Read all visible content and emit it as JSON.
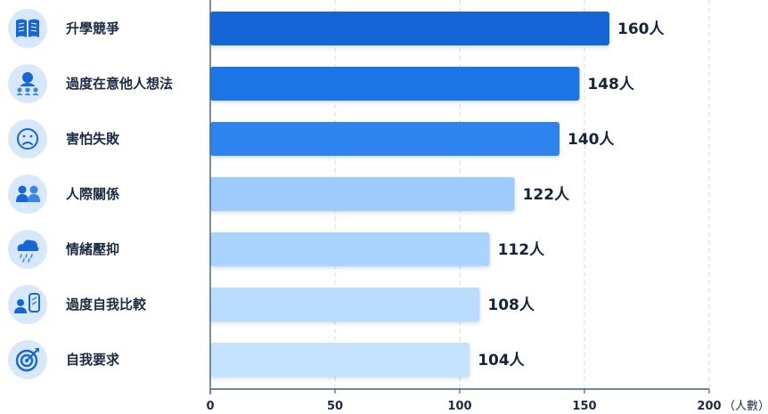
{
  "chart_data": {
    "type": "bar",
    "orientation": "horizontal",
    "categories": [
      "升學競爭",
      "過度在意他人想法",
      "害怕失敗",
      "人際關係",
      "情緒壓抑",
      "過度自我比較",
      "自我要求"
    ],
    "icons": [
      "book-icon",
      "worried-person-group-icon",
      "sad-face-icon",
      "two-people-icon",
      "rain-cloud-icon",
      "person-mirror-icon",
      "target-icon"
    ],
    "values": [
      160,
      148,
      140,
      122,
      112,
      108,
      104
    ],
    "value_labels": [
      "160人",
      "148人",
      "140人",
      "122人",
      "112人",
      "108人",
      "104人"
    ],
    "bar_colors": [
      "#1565d8",
      "#1f74e6",
      "#2f84ee",
      "#9ccbfc",
      "#aad4fd",
      "#b9dbfd",
      "#c4e1fd"
    ],
    "xlim": [
      0,
      200
    ],
    "x_ticks": [
      0,
      50,
      100,
      150,
      200
    ],
    "x_tick_labels": [
      "0",
      "50",
      "100",
      "150",
      "200"
    ],
    "xlabel": "（人數）",
    "ylabel": "",
    "title": "",
    "grid": "vertical-dashed",
    "legend": "none"
  }
}
